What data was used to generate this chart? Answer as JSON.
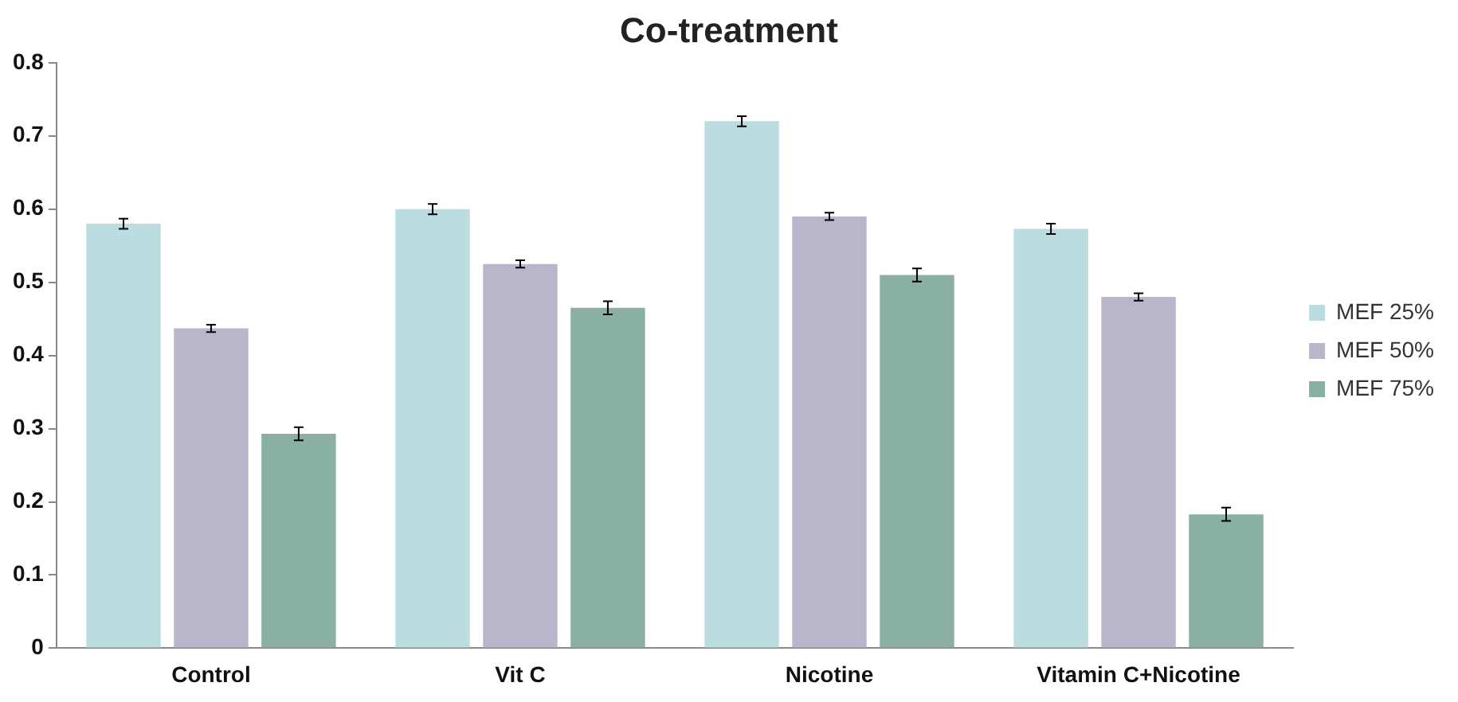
{
  "chart_data": {
    "type": "bar",
    "title": "Co-treatment",
    "categories": [
      "Control",
      "Vit C",
      "Nicotine",
      "Vitamin C+Nicotine"
    ],
    "series": [
      {
        "name": "MEF 25%",
        "color": "#bcdde0",
        "values": [
          0.58,
          0.6,
          0.72,
          0.573
        ],
        "errors": [
          0.007,
          0.007,
          0.007,
          0.007
        ]
      },
      {
        "name": "MEF 50%",
        "color": "#b9b6cc",
        "values": [
          0.437,
          0.525,
          0.59,
          0.48
        ],
        "errors": [
          0.005,
          0.005,
          0.005,
          0.005
        ]
      },
      {
        "name": "MEF 75%",
        "color": "#8aafa3",
        "values": [
          0.293,
          0.465,
          0.51,
          0.183
        ],
        "errors": [
          0.009,
          0.009,
          0.009,
          0.009
        ]
      }
    ],
    "ylim": [
      0,
      0.8
    ],
    "yticks": [
      0,
      0.1,
      0.2,
      0.3,
      0.4,
      0.5,
      0.6,
      0.7,
      0.8
    ],
    "grid": false,
    "legend": "right"
  }
}
